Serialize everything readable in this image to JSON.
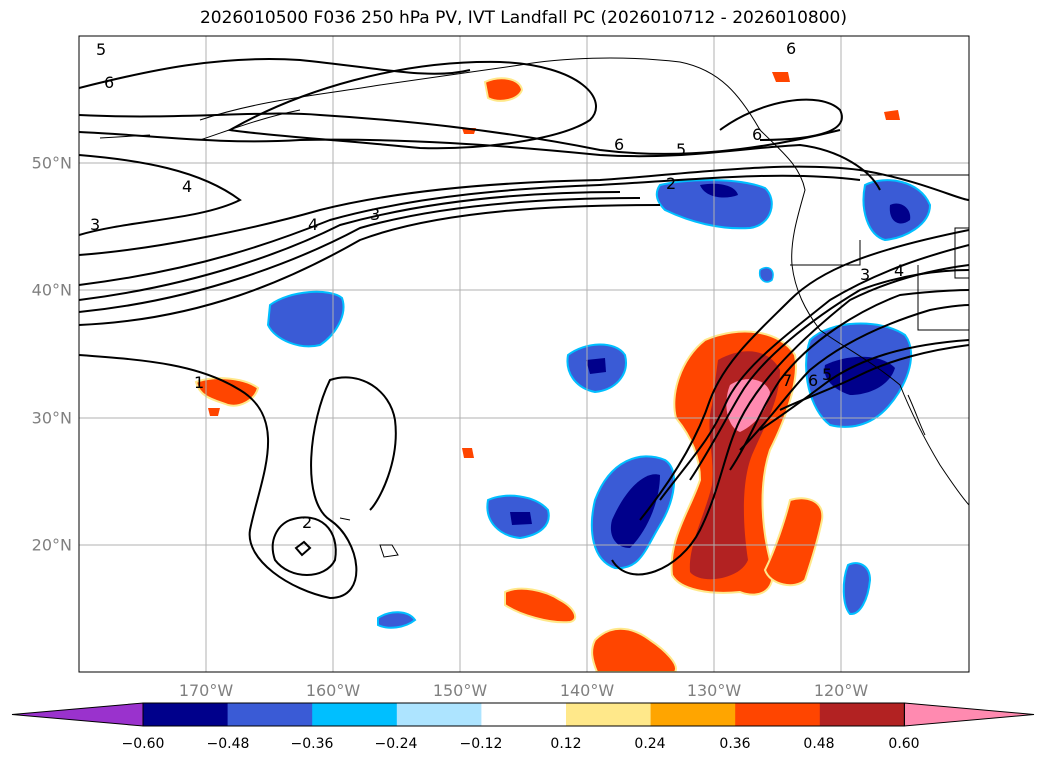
{
  "title": "2026010500 F036 250 hPa PV, IVT Landfall PC (2026010712 - 2026010800)",
  "lat_labels": [
    "50°N",
    "40°N",
    "30°N",
    "20°N"
  ],
  "lat_values": [
    50,
    40,
    30,
    20
  ],
  "lon_labels": [
    "170°W",
    "160°W",
    "150°W",
    "140°W",
    "130°W",
    "120°W"
  ],
  "lon_values": [
    -170,
    -160,
    -150,
    -140,
    -130,
    -120
  ],
  "contour_labels": [
    "5",
    "6",
    "6",
    "6",
    "6",
    "5",
    "4",
    "4",
    "3",
    "3",
    "2",
    "3",
    "4",
    "1",
    "2",
    "7",
    "6",
    "5"
  ],
  "colorbar": {
    "tick_labels": [
      "−0.60",
      "−0.48",
      "−0.36",
      "−0.24",
      "−0.12",
      "0.12",
      "0.24",
      "0.36",
      "0.48",
      "0.60"
    ],
    "colors": [
      "#9a32cd",
      "#00008b",
      "#3a5bd6",
      "#00bfff",
      "#ade4ff",
      "#ffffff",
      "#ffe88a",
      "#ffa500",
      "#ff4500",
      "#b22222",
      "#ff8ab0"
    ]
  }
}
